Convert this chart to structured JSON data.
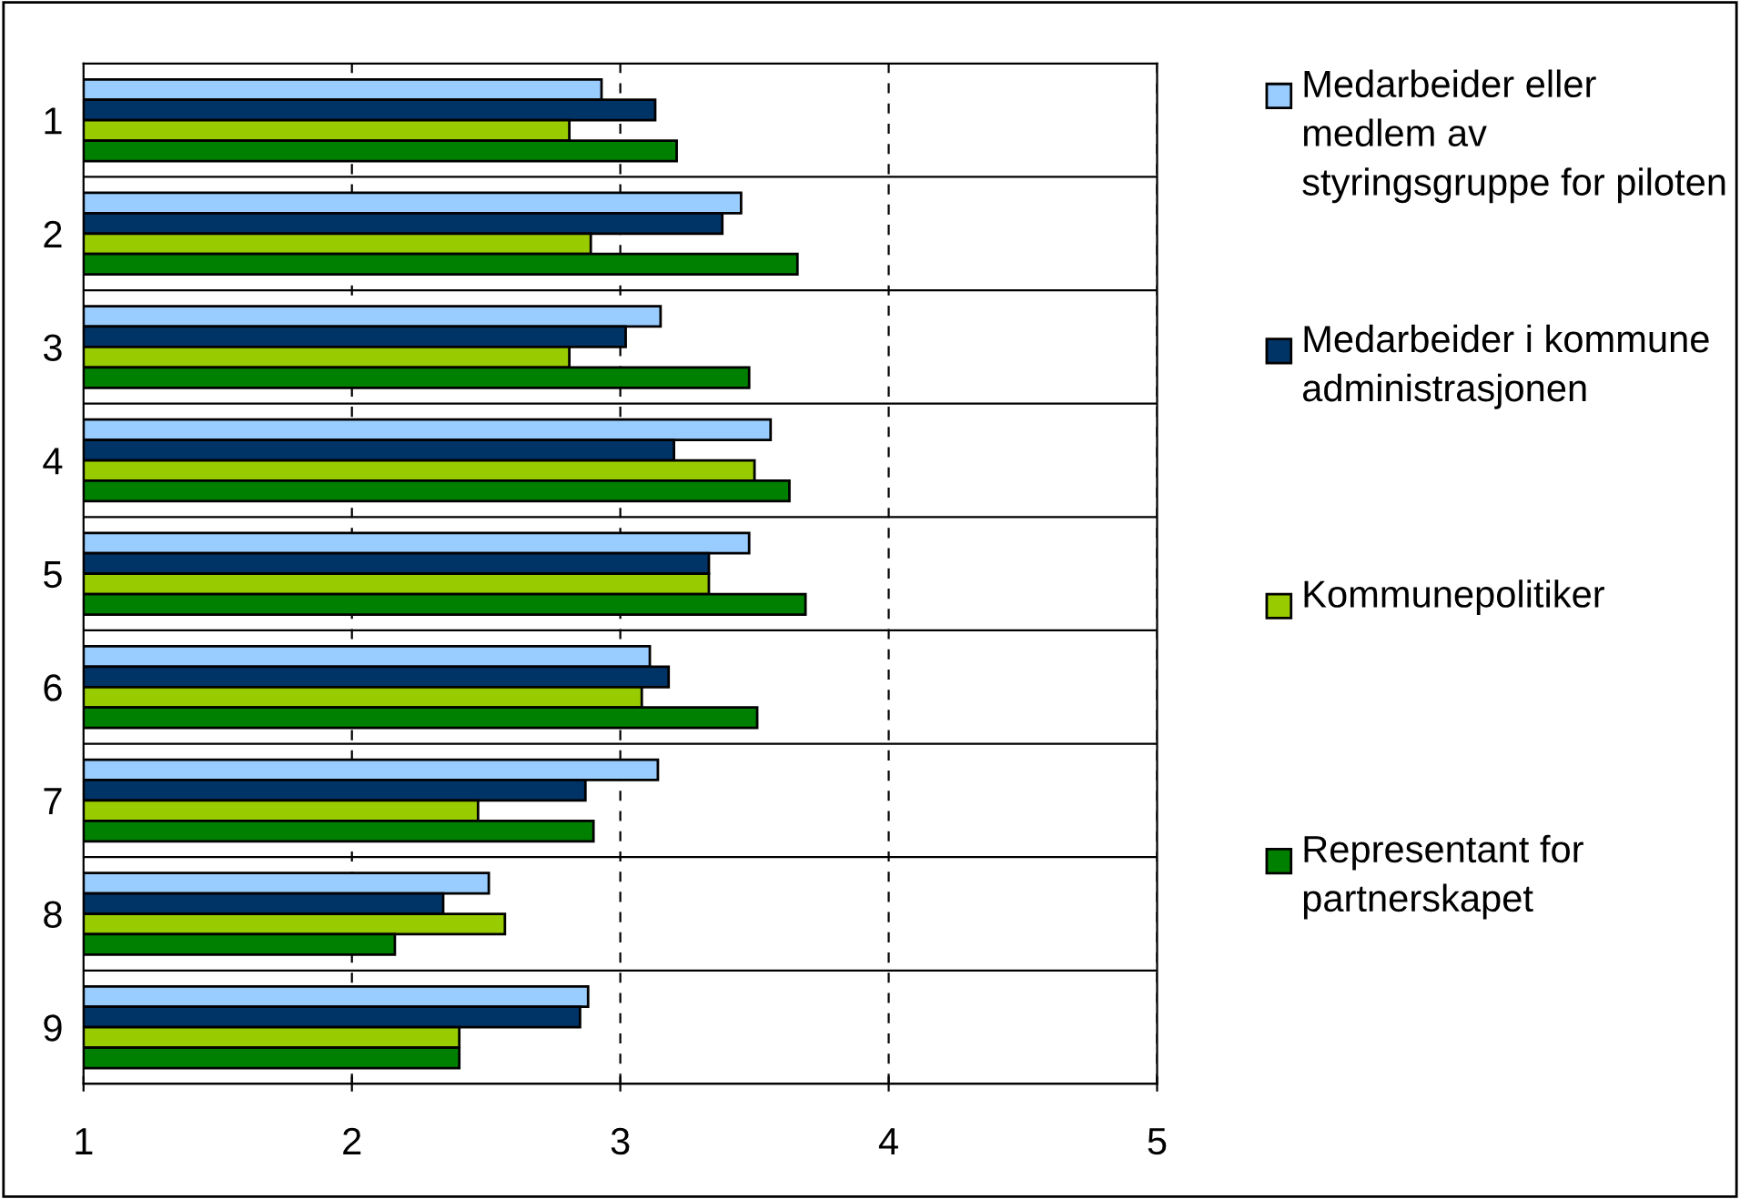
{
  "chart_data": {
    "type": "bar",
    "orientation": "horizontal",
    "categories": [
      "1",
      "2",
      "3",
      "4",
      "5",
      "6",
      "7",
      "8",
      "9"
    ],
    "series": [
      {
        "name": "Medarbeider eller medlem av styringsgruppe for piloten",
        "color": "#99ccff",
        "values": [
          2.93,
          3.45,
          3.15,
          3.56,
          3.48,
          3.11,
          3.14,
          2.51,
          2.88
        ]
      },
      {
        "name": "Medarbeider i kommune administrasjonen",
        "color": "#003366",
        "values": [
          3.13,
          3.38,
          3.02,
          3.2,
          3.33,
          3.18,
          2.87,
          2.34,
          2.85
        ]
      },
      {
        "name": "Kommunepolitiker",
        "color": "#99cc00",
        "values": [
          2.81,
          2.89,
          2.81,
          3.5,
          3.33,
          3.08,
          2.47,
          2.57,
          2.4
        ]
      },
      {
        "name": "Representant for partnerskapet",
        "color": "#008000",
        "values": [
          3.21,
          3.66,
          3.48,
          3.63,
          3.69,
          3.51,
          2.9,
          2.16,
          2.4
        ]
      }
    ],
    "xlim": [
      1,
      5
    ],
    "xticks": [
      1,
      2,
      3,
      4,
      5
    ],
    "grid": true,
    "legend": "right"
  }
}
